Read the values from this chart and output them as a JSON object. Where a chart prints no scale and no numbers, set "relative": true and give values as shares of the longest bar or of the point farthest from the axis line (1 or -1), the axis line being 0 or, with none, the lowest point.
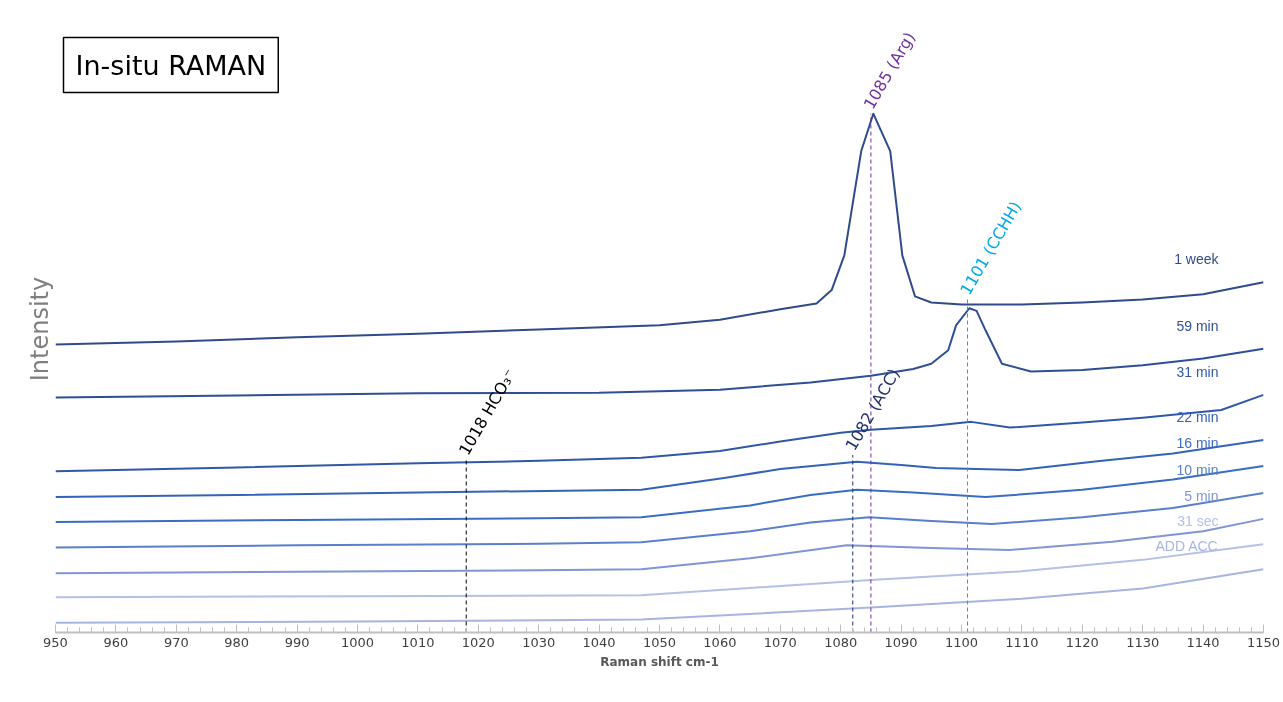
{
  "chart_data": {
    "type": "line",
    "title": "In-situ RAMAN",
    "xlabel": "Raman shift cm-1",
    "ylabel": "Intensity",
    "relative": true,
    "xlim": [
      950,
      1150
    ],
    "xticks": [
      950,
      960,
      970,
      980,
      990,
      1000,
      1010,
      1020,
      1030,
      1040,
      1050,
      1060,
      1070,
      1080,
      1090,
      1100,
      1110,
      1120,
      1130,
      1140,
      1150
    ],
    "tick_labels": "x",
    "grid": false,
    "series": [
      {
        "name": "1 week",
        "color": "#2f4b8a",
        "x": [
          950,
          970,
          990,
          1010,
          1030,
          1050,
          1060,
          1070,
          1076,
          1078.5,
          1080.6,
          1083.4,
          1085.4,
          1088.2,
          1090.2,
          1092.3,
          1095,
          1100,
          1110,
          1120,
          1130,
          1140,
          1150
        ],
        "values": [
          0.555,
          0.561,
          0.569,
          0.576,
          0.584,
          0.592,
          0.603,
          0.623,
          0.634,
          0.66,
          0.727,
          0.928,
          1.0,
          0.928,
          0.727,
          0.648,
          0.636,
          0.632,
          0.632,
          0.636,
          0.642,
          0.652,
          0.675
        ]
      },
      {
        "name": "59 min",
        "color": "#2e4f96",
        "x": [
          950,
          980,
          1010,
          1040,
          1060,
          1075,
          1085,
          1092,
          1095,
          1097.8,
          1099.1,
          1101.3,
          1102.5,
          1104,
          1106.7,
          1111.5,
          1120,
          1130,
          1140,
          1150
        ],
        "values": [
          0.453,
          0.457,
          0.461,
          0.462,
          0.468,
          0.482,
          0.495,
          0.508,
          0.518,
          0.544,
          0.592,
          0.625,
          0.62,
          0.582,
          0.518,
          0.503,
          0.506,
          0.515,
          0.528,
          0.547
        ]
      },
      {
        "name": "31 min",
        "color": "#3058a8",
        "x": [
          950,
          980,
          1010,
          1030,
          1047,
          1060,
          1070,
          1080,
          1085,
          1095,
          1101.6,
          1108,
          1120,
          1130,
          1143,
          1150
        ],
        "values": [
          0.311,
          0.318,
          0.326,
          0.331,
          0.337,
          0.35,
          0.368,
          0.385,
          0.391,
          0.398,
          0.406,
          0.395,
          0.405,
          0.414,
          0.429,
          0.458
        ]
      },
      {
        "name": "22 min",
        "color": "#3462b8",
        "x": [
          950,
          980,
          1010,
          1047,
          1060.7,
          1070,
          1082.7,
          1090,
          1095.8,
          1109.6,
          1122.5,
          1135,
          1150
        ],
        "values": [
          0.261,
          0.265,
          0.27,
          0.275,
          0.298,
          0.315,
          0.329,
          0.323,
          0.317,
          0.313,
          0.33,
          0.345,
          0.371
        ]
      },
      {
        "name": "16 min",
        "color": "#3a6cc4",
        "x": [
          950,
          990,
          1030,
          1047,
          1065,
          1075,
          1082.7,
          1092,
          1104,
          1120,
          1135,
          1150
        ],
        "values": [
          0.213,
          0.217,
          0.22,
          0.222,
          0.245,
          0.265,
          0.275,
          0.27,
          0.261,
          0.275,
          0.295,
          0.321
        ]
      },
      {
        "name": "10 min",
        "color": "#5a7fcc",
        "x": [
          950,
          990,
          1030,
          1047,
          1065,
          1075,
          1084.7,
          1095,
          1105,
          1120,
          1135,
          1150
        ],
        "values": [
          0.164,
          0.168,
          0.171,
          0.174,
          0.195,
          0.212,
          0.222,
          0.215,
          0.209,
          0.222,
          0.24,
          0.269
        ]
      },
      {
        "name": "5 min",
        "color": "#7f95d4",
        "x": [
          950,
          990,
          1030,
          1047,
          1065,
          1081,
          1095,
          1108,
          1125,
          1140,
          1150
        ],
        "values": [
          0.114,
          0.117,
          0.12,
          0.122,
          0.143,
          0.168,
          0.163,
          0.159,
          0.175,
          0.195,
          0.219
        ]
      },
      {
        "name": "31 sec",
        "color": "#b4c0e4",
        "x": [
          950,
          1000,
          1047,
          1085,
          1110,
          1130,
          1150
        ],
        "values": [
          0.068,
          0.07,
          0.072,
          0.101,
          0.118,
          0.14,
          0.17
        ]
      },
      {
        "name": "ADD ACC",
        "color": "#a8b4e0",
        "x": [
          950,
          1000,
          1047,
          1085,
          1110,
          1130,
          1150
        ],
        "values": [
          0.019,
          0.021,
          0.025,
          0.048,
          0.065,
          0.085,
          0.122
        ]
      }
    ],
    "ref_lines": [
      {
        "axis": "x",
        "value": 1018,
        "color": "#000000",
        "line_style": "dashed"
      },
      {
        "axis": "x",
        "value": 1082,
        "color": "#1f2f6b",
        "line_style": "dashed"
      },
      {
        "axis": "x",
        "value": 1085,
        "color": "#7030a0",
        "line_style": "dashed"
      },
      {
        "axis": "x",
        "value": 1101,
        "color": "#00a8e8",
        "line_style": "dashed"
      }
    ],
    "annotations": [
      {
        "text": "1018 HCO₃⁻",
        "x": 1018,
        "y": 0.333
      },
      {
        "text": "1082 (ACC)",
        "x": 1082,
        "y": 0.342
      },
      {
        "text": "1085 (Arg)",
        "x": 1085,
        "y": 1.0
      },
      {
        "text": "1101 (CCHH)",
        "x": 1101,
        "y": 0.642
      }
    ]
  }
}
